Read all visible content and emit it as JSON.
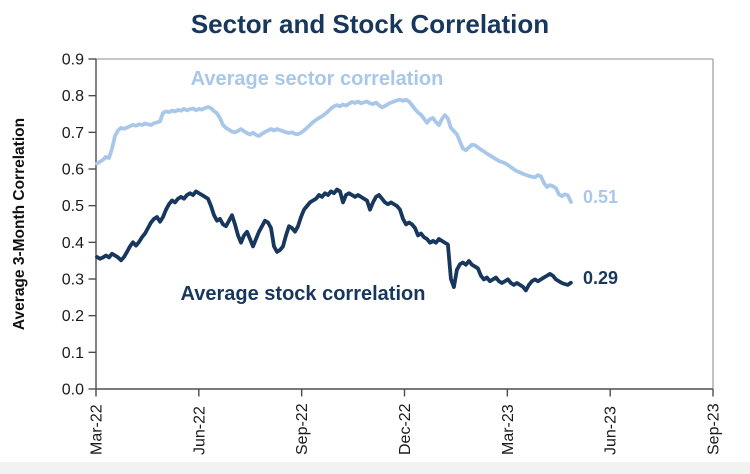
{
  "title": "Sector and Stock Correlation",
  "colors": {
    "title": "#17375D",
    "sector_line": "#A9C8E9",
    "stock_line": "#17375D",
    "axis_dark": "#4D4D4D",
    "frame_light": "#A3A3A3",
    "tick_text": "#1A1A1A",
    "footer_strip": "#F2F2F2"
  },
  "chart_data": {
    "type": "line",
    "title": "Sector and Stock Correlation",
    "xlabel": "",
    "ylabel": "Average 3-Month Correlation",
    "ylim": [
      0.0,
      0.9
    ],
    "grid": false,
    "legend_position": "inline-labels",
    "x_unit": "months since Mar-2022",
    "xlim_months": [
      0,
      18
    ],
    "y_ticks": [
      {
        "v": 0.0,
        "label": "0.0"
      },
      {
        "v": 0.1,
        "label": "0.1"
      },
      {
        "v": 0.2,
        "label": "0.2"
      },
      {
        "v": 0.3,
        "label": "0.3"
      },
      {
        "v": 0.4,
        "label": "0.4"
      },
      {
        "v": 0.5,
        "label": "0.5"
      },
      {
        "v": 0.6,
        "label": "0.6"
      },
      {
        "v": 0.7,
        "label": "0.7"
      },
      {
        "v": 0.8,
        "label": "0.8"
      },
      {
        "v": 0.9,
        "label": "0.9"
      }
    ],
    "x_ticks": [
      {
        "m": 0,
        "label": "Mar-22"
      },
      {
        "m": 3,
        "label": "Jun-22"
      },
      {
        "m": 6,
        "label": "Sep-22"
      },
      {
        "m": 9,
        "label": "Dec-22"
      },
      {
        "m": 12,
        "label": "Mar-23"
      },
      {
        "m": 15,
        "label": "Jun-23"
      },
      {
        "m": 18,
        "label": "Sep-23"
      }
    ],
    "series": [
      {
        "name": "Average sector correlation",
        "color": "#A9C8E9",
        "end_label": "0.51",
        "end_value": 0.51,
        "t_start": 0.03,
        "t_step": 0.0875,
        "values": [
          0.615,
          0.62,
          0.625,
          0.633,
          0.63,
          0.655,
          0.69,
          0.705,
          0.712,
          0.71,
          0.713,
          0.717,
          0.72,
          0.718,
          0.722,
          0.72,
          0.724,
          0.722,
          0.72,
          0.725,
          0.727,
          0.73,
          0.753,
          0.757,
          0.755,
          0.759,
          0.757,
          0.761,
          0.759,
          0.764,
          0.76,
          0.763,
          0.765,
          0.76,
          0.764,
          0.762,
          0.766,
          0.769,
          0.766,
          0.758,
          0.752,
          0.738,
          0.72,
          0.712,
          0.707,
          0.702,
          0.7,
          0.704,
          0.709,
          0.703,
          0.698,
          0.694,
          0.699,
          0.693,
          0.69,
          0.696,
          0.701,
          0.705,
          0.709,
          0.705,
          0.709,
          0.706,
          0.703,
          0.7,
          0.698,
          0.7,
          0.696,
          0.695,
          0.699,
          0.705,
          0.712,
          0.72,
          0.728,
          0.734,
          0.739,
          0.744,
          0.75,
          0.757,
          0.765,
          0.771,
          0.774,
          0.771,
          0.776,
          0.773,
          0.778,
          0.783,
          0.78,
          0.784,
          0.779,
          0.782,
          0.784,
          0.779,
          0.777,
          0.781,
          0.774,
          0.768,
          0.772,
          0.777,
          0.781,
          0.784,
          0.787,
          0.789,
          0.786,
          0.789,
          0.784,
          0.774,
          0.763,
          0.754,
          0.748,
          0.737,
          0.726,
          0.736,
          0.739,
          0.728,
          0.72,
          0.736,
          0.747,
          0.738,
          0.712,
          0.703,
          0.695,
          0.675,
          0.656,
          0.651,
          0.659,
          0.666,
          0.665,
          0.659,
          0.653,
          0.648,
          0.642,
          0.637,
          0.632,
          0.627,
          0.622,
          0.619,
          0.616,
          0.611,
          0.605,
          0.599,
          0.594,
          0.591,
          0.587,
          0.584,
          0.581,
          0.579,
          0.577,
          0.583,
          0.58,
          0.562,
          0.551,
          0.556,
          0.553,
          0.548,
          0.531,
          0.526,
          0.531,
          0.528,
          0.51
        ]
      },
      {
        "name": "Average stock correlation",
        "color": "#17375D",
        "end_label": "0.29",
        "end_value": 0.29,
        "t_start": 0.03,
        "t_step": 0.0875,
        "values": [
          0.36,
          0.355,
          0.359,
          0.364,
          0.359,
          0.369,
          0.364,
          0.359,
          0.351,
          0.36,
          0.374,
          0.389,
          0.4,
          0.391,
          0.401,
          0.414,
          0.424,
          0.439,
          0.454,
          0.464,
          0.469,
          0.456,
          0.469,
          0.489,
          0.504,
          0.514,
          0.509,
          0.519,
          0.524,
          0.519,
          0.529,
          0.534,
          0.529,
          0.539,
          0.534,
          0.529,
          0.524,
          0.519,
          0.499,
          0.474,
          0.459,
          0.464,
          0.449,
          0.444,
          0.459,
          0.474,
          0.449,
          0.419,
          0.399,
          0.419,
          0.429,
          0.409,
          0.389,
          0.409,
          0.429,
          0.444,
          0.459,
          0.454,
          0.439,
          0.389,
          0.374,
          0.379,
          0.389,
          0.419,
          0.444,
          0.439,
          0.429,
          0.444,
          0.469,
          0.489,
          0.499,
          0.509,
          0.514,
          0.519,
          0.529,
          0.524,
          0.534,
          0.529,
          0.539,
          0.534,
          0.544,
          0.539,
          0.509,
          0.529,
          0.534,
          0.529,
          0.524,
          0.529,
          0.524,
          0.519,
          0.514,
          0.489,
          0.509,
          0.524,
          0.529,
          0.519,
          0.509,
          0.504,
          0.509,
          0.504,
          0.499,
          0.489,
          0.464,
          0.449,
          0.454,
          0.449,
          0.439,
          0.419,
          0.424,
          0.414,
          0.409,
          0.399,
          0.404,
          0.399,
          0.409,
          0.404,
          0.399,
          0.394,
          0.3,
          0.278,
          0.325,
          0.34,
          0.345,
          0.339,
          0.349,
          0.339,
          0.334,
          0.329,
          0.309,
          0.299,
          0.304,
          0.294,
          0.299,
          0.304,
          0.294,
          0.289,
          0.294,
          0.299,
          0.289,
          0.284,
          0.289,
          0.284,
          0.279,
          0.269,
          0.284,
          0.294,
          0.299,
          0.294,
          0.299,
          0.304,
          0.309,
          0.314,
          0.309,
          0.299,
          0.294,
          0.289,
          0.286,
          0.284,
          0.29
        ]
      }
    ]
  },
  "y_axis": {
    "label": "Average 3-Month Correlation"
  }
}
